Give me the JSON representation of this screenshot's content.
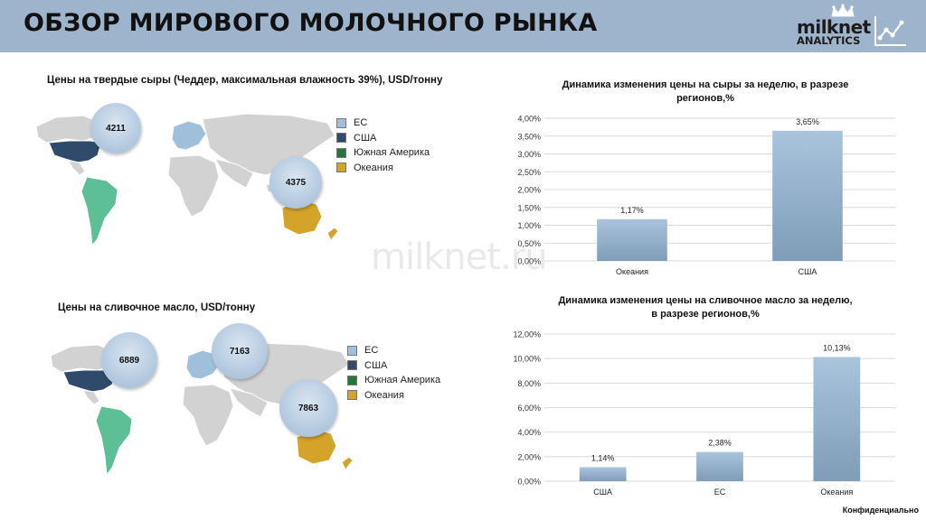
{
  "header": {
    "title": "ОБЗОР МИРОВОГО МОЛОЧНОГО РЫНКА"
  },
  "logo": {
    "line1": "milknet",
    "line2": "ANALYTICS"
  },
  "colors": {
    "header_bg": "#9db4cc",
    "eu": "#9fbfda",
    "usa": "#2f4a6b",
    "south_america": "#1f7a3a",
    "south_america_map": "#5dbf96",
    "oceania": "#d4a32a",
    "land": "#d2d2d2",
    "bar": "#8fb0cd"
  },
  "cheese": {
    "title": "Цены на твердые сыры (Чеддер, максимальная влажность 39%), USD/тонну",
    "bubbles": {
      "usa": "4211",
      "oceania": "4375"
    }
  },
  "butter": {
    "title": "Цены на сливочное масло, USD/тонну",
    "bubbles": {
      "usa": "6889",
      "eu": "7163",
      "oceania": "7863"
    }
  },
  "legend": [
    "ЕС",
    "США",
    "Южная Америка",
    "Океания"
  ],
  "watermark": "milknet.ru",
  "footer": "Конфиденциально",
  "chart_data": [
    {
      "type": "bar",
      "title": "Динамика изменения цены на сыры за неделю, в разрезе регионов,%",
      "title_lines": [
        "Динамика изменения цены на сыры за неделю, в разрезе",
        "регионов,%"
      ],
      "categories": [
        "Океания",
        "США"
      ],
      "values": [
        1.17,
        3.65
      ],
      "value_labels": [
        "1,17%",
        "3,65%"
      ],
      "ylim": [
        0,
        4
      ],
      "yticks": [
        "0,00%",
        "0,50%",
        "1,00%",
        "1,50%",
        "2,00%",
        "2,50%",
        "3,00%",
        "3,50%",
        "4,00%"
      ],
      "grid": true,
      "xlabel": "",
      "ylabel": ""
    },
    {
      "type": "bar",
      "title": "Динамика изменения цены на сливочное масло за неделю, в разрезе регионов,%",
      "title_lines": [
        "Динамика изменения цены на сливочное масло за неделю,",
        "в разрезе регионов,%"
      ],
      "categories": [
        "США",
        "ЕС",
        "Океания"
      ],
      "values": [
        1.14,
        2.38,
        10.13
      ],
      "value_labels": [
        "1,14%",
        "2,38%",
        "10,13%"
      ],
      "ylim": [
        0,
        12
      ],
      "yticks": [
        "0,00%",
        "2,00%",
        "4,00%",
        "6,00%",
        "8,00%",
        "10,00%",
        "12,00%"
      ],
      "grid": true,
      "xlabel": "",
      "ylabel": ""
    }
  ]
}
